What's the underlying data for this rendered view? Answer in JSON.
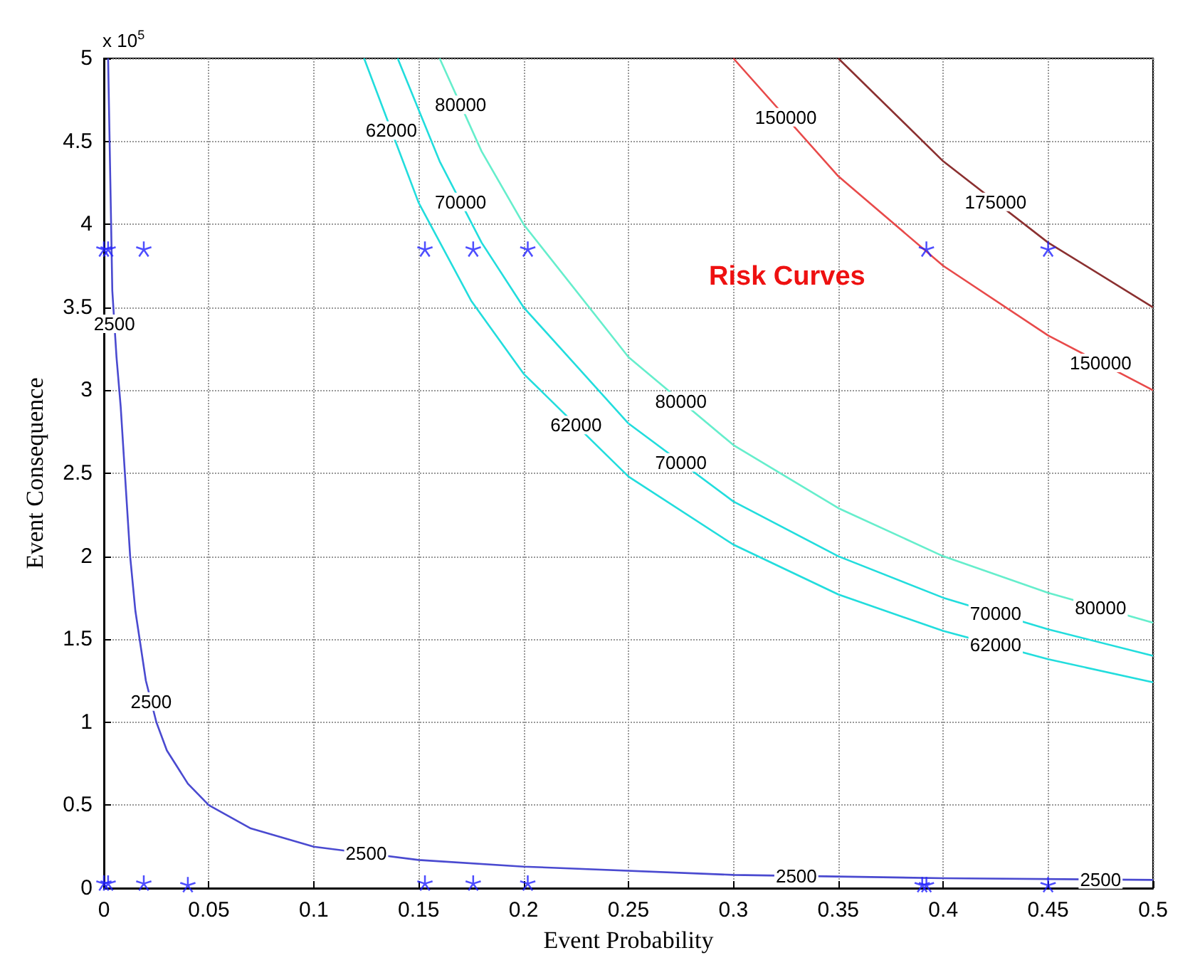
{
  "chart_data": {
    "type": "line",
    "xlabel": "Event Probability",
    "ylabel": "Event Consequence",
    "xlim": [
      0,
      0.5
    ],
    "xticks": [
      0,
      0.05,
      0.1,
      0.15,
      0.2,
      0.25,
      0.3,
      0.35,
      0.4,
      0.45,
      0.5
    ],
    "ylim": [
      0,
      5
    ],
    "yticks": [
      0,
      0.5,
      1,
      1.5,
      2,
      2.5,
      3,
      3.5,
      4,
      4.5,
      5
    ],
    "grid": true,
    "line_style": "solid",
    "series": [
      {
        "marker": "none",
        "color": "#4a4ad0",
        "x": [
          0.002,
          0.004,
          0.006,
          0.008,
          0.01,
          0.0125,
          0.015,
          0.02,
          0.025,
          0.03,
          0.04,
          0.05,
          0.07,
          0.1,
          0.15,
          0.2,
          0.3,
          0.4,
          0.5
        ],
        "values": [
          5,
          3.6,
          3.2,
          2.9,
          2.5,
          2,
          1.67,
          1.25,
          1,
          0.83,
          0.63,
          0.5,
          0.36,
          0.25,
          0.17,
          0.13,
          0.08,
          0.06,
          0.05
        ]
      },
      {
        "marker": "none",
        "color": "#22dddd",
        "x": [
          0.124,
          0.15,
          0.175,
          0.2,
          0.25,
          0.3,
          0.35,
          0.4,
          0.45,
          0.5
        ],
        "values": [
          5,
          4.13,
          3.54,
          3.1,
          2.48,
          2.07,
          1.77,
          1.55,
          1.38,
          1.24
        ]
      },
      {
        "marker": "none",
        "color": "#22dddd",
        "x": [
          0.14,
          0.16,
          0.18,
          0.2,
          0.25,
          0.3,
          0.35,
          0.4,
          0.45,
          0.5
        ],
        "values": [
          5,
          4.38,
          3.89,
          3.5,
          2.8,
          2.33,
          2,
          1.75,
          1.56,
          1.4
        ]
      },
      {
        "marker": "none",
        "color": "#66eecc",
        "x": [
          0.16,
          0.18,
          0.2,
          0.25,
          0.3,
          0.35,
          0.4,
          0.45,
          0.5
        ],
        "values": [
          5,
          4.44,
          4,
          3.2,
          2.67,
          2.29,
          2,
          1.78,
          1.6
        ]
      },
      {
        "marker": "none",
        "color": "#e84a4a",
        "x": [
          0.3,
          0.35,
          0.4,
          0.45,
          0.5
        ],
        "values": [
          5,
          4.29,
          3.75,
          3.33,
          3
        ]
      },
      {
        "marker": "none",
        "color": "#8b3030",
        "x": [
          0.35,
          0.4,
          0.45,
          0.5
        ],
        "values": [
          5,
          4.38,
          3.89,
          3.5
        ]
      },
      {
        "type": "scatter",
        "marker": "star",
        "color": "#2222ff",
        "x": [
          0,
          0.002,
          0.019,
          0.153,
          0.176,
          0.202,
          0.392,
          0.45,
          0,
          0.002,
          0.019,
          0.04,
          0.153,
          0.176,
          0.202,
          0.39,
          0.392,
          0.45
        ],
        "values": [
          3.85,
          3.85,
          3.85,
          3.85,
          3.85,
          3.85,
          3.85,
          3.85,
          0.03,
          0.03,
          0.03,
          0.02,
          0.03,
          0.03,
          0.03,
          0.02,
          0.02,
          0.02
        ]
      }
    ],
    "annotations": [
      "x 10$^{5}$",
      "Risk Curves",
      {
        "text": "2500",
        "x": 0.005,
        "y": 3.4
      },
      {
        "text": "2500",
        "x": 0.0225,
        "y": 1.125
      },
      {
        "text": "2500",
        "x": 0.125,
        "y": 0.21
      },
      {
        "text": "2500",
        "x": 0.33,
        "y": 0.074
      },
      {
        "text": "2500",
        "x": 0.475,
        "y": 0.0525
      },
      {
        "text": "62000",
        "x": 0.137,
        "y": 4.565
      },
      {
        "text": "62000",
        "x": 0.225,
        "y": 2.79
      },
      {
        "text": "62000",
        "x": 0.425,
        "y": 1.465
      },
      {
        "text": "70000",
        "x": 0.17,
        "y": 4.135
      },
      {
        "text": "70000",
        "x": 0.275,
        "y": 2.565
      },
      {
        "text": "70000",
        "x": 0.425,
        "y": 1.655
      },
      {
        "text": "80000",
        "x": 0.17,
        "y": 4.72
      },
      {
        "text": "80000",
        "x": 0.275,
        "y": 2.935
      },
      {
        "text": "80000",
        "x": 0.475,
        "y": 1.69
      },
      {
        "text": "150000",
        "x": 0.325,
        "y": 4.645
      },
      {
        "text": "150000",
        "x": 0.475,
        "y": 3.165
      },
      {
        "text": "175000",
        "x": 0.425,
        "y": 4.135
      }
    ]
  }
}
